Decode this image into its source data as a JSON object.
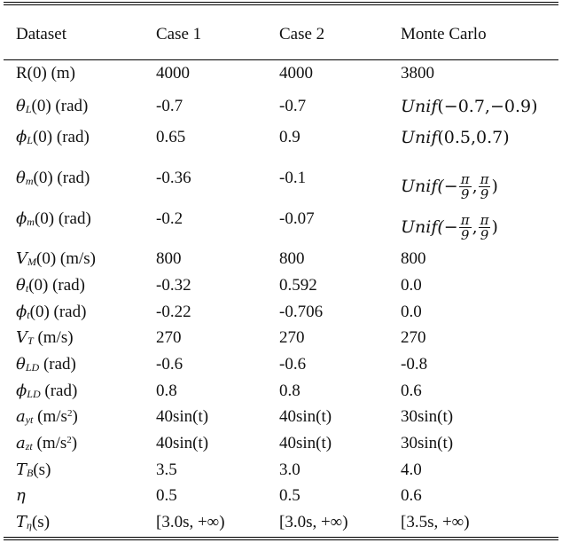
{
  "headers": [
    "Dataset",
    "Case 1",
    "Case 2",
    "Monte Carlo"
  ],
  "rows": [
    {
      "param": {
        "main": "R(0) (m)"
      },
      "c1": "4000",
      "c2": "4000",
      "mc": "3800"
    },
    {
      "param": {
        "sym": "θ",
        "sub": "L",
        "rest": "(0) (rad)"
      },
      "c1": "-0.7",
      "c2": "-0.7",
      "mc": "Unif(−0.7,−0.9)"
    },
    {
      "param": {
        "sym": "ϕ",
        "sub": "L",
        "rest": "(0) (rad)"
      },
      "c1": "0.65",
      "c2": "0.9",
      "mc": "Unif(0.5,0.7)"
    },
    {
      "param": {
        "sym": "θ",
        "sub": "m",
        "rest": "(0) (rad)"
      },
      "c1": "-0.36",
      "c2": "-0.1",
      "mc": "Unif(−π/9, π/9)"
    },
    {
      "param": {
        "sym": "ϕ",
        "sub": "m",
        "rest": "(0) (rad)"
      },
      "c1": "-0.2",
      "c2": "-0.07",
      "mc": "Unif(−π/9, π/9)"
    },
    {
      "param": {
        "sym": "V",
        "sub": "M",
        "rest": "(0) (m/s)"
      },
      "c1": "800",
      "c2": "800",
      "mc": "800"
    },
    {
      "param": {
        "sym": "θ",
        "sub": "t",
        "rest": "(0) (rad)"
      },
      "c1": "-0.32",
      "c2": "0.592",
      "mc": "0.0"
    },
    {
      "param": {
        "sym": "ϕ",
        "sub": "t",
        "rest": "(0) (rad)"
      },
      "c1": "-0.22",
      "c2": "-0.706",
      "mc": "0.0"
    },
    {
      "param": {
        "sym": "V",
        "sub": "T",
        "rest": " (m/s)"
      },
      "c1": "270",
      "c2": "270",
      "mc": "270"
    },
    {
      "param": {
        "sym": "θ",
        "sub": "LD",
        "rest": " (rad)"
      },
      "c1": "-0.6",
      "c2": "-0.6",
      "mc": "-0.8"
    },
    {
      "param": {
        "sym": "ϕ",
        "sub": "LD",
        "rest": " (rad)"
      },
      "c1": "0.8",
      "c2": "0.8",
      "mc": "0.6"
    },
    {
      "param": {
        "sym": "a",
        "sub": "yt",
        "rest": " (m/s",
        "sup": "2",
        "rest2": ")"
      },
      "c1": "40sin(t)",
      "c2": "40sin(t)",
      "mc": "30sin(t)"
    },
    {
      "param": {
        "sym": "a",
        "sub": "zt",
        "rest": " (m/s",
        "sup": "2",
        "rest2": ")"
      },
      "c1": "40sin(t)",
      "c2": "40sin(t)",
      "mc": "30sin(t)"
    },
    {
      "param": {
        "sym": "T",
        "sub": "B",
        "rest": "(s)"
      },
      "c1": "3.5",
      "c2": "3.0",
      "mc": "4.0"
    },
    {
      "param": {
        "sym": "η",
        "sub": "",
        "rest": ""
      },
      "c1": "0.5",
      "c2": "0.5",
      "mc": "0.6"
    },
    {
      "param": {
        "sym": "T",
        "sub": "η",
        "rest": "(s)"
      },
      "c1": "[3.0s, +∞)",
      "c2": "[3.0s, +∞)",
      "mc": "[3.5s, +∞)"
    }
  ],
  "unif": {
    "prefix": "Unif",
    "pi": "π",
    "nine": "9"
  }
}
